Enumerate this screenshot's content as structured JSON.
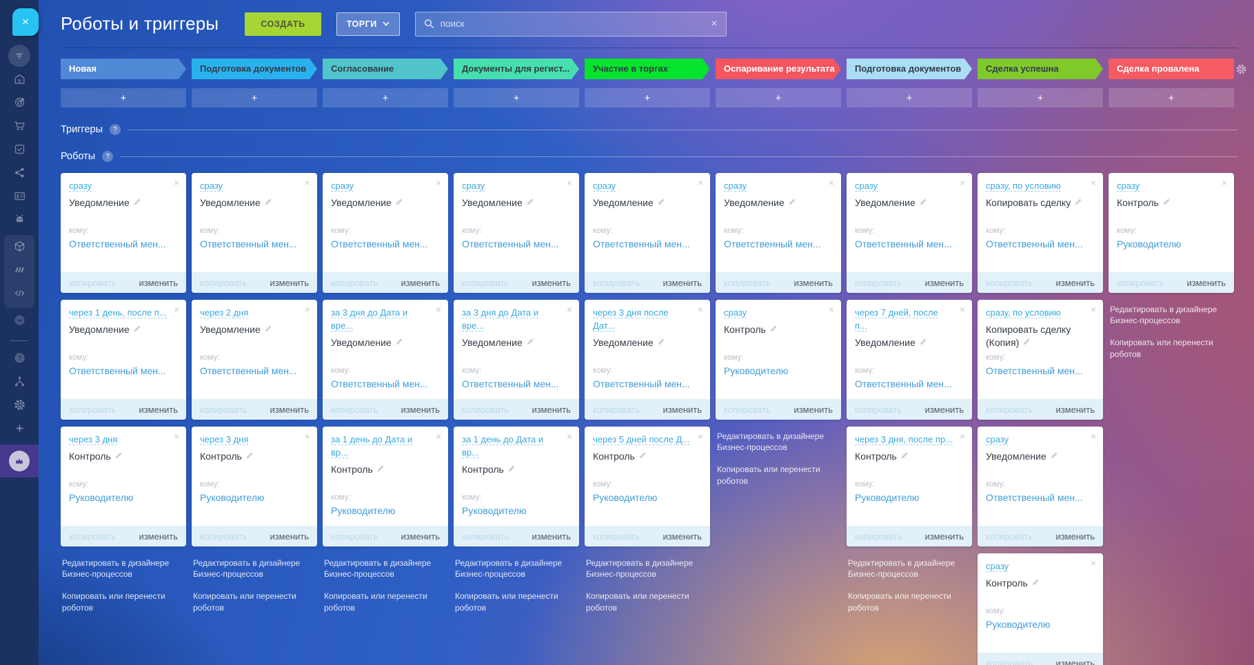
{
  "header": {
    "title": "Роботы и триггеры",
    "create_button": "СОЗДАТЬ",
    "pipeline_button": "ТОРГИ",
    "search": {
      "placeholder": "поиск",
      "clear": "×"
    }
  },
  "sidebar": {
    "close_button": "×",
    "icons": [
      "close-icon",
      "filter-icon",
      "warehouse-icon",
      "target-icon",
      "cart-icon",
      "tasks-icon",
      "share-network-icon",
      "contact-card-icon",
      "robot-icon",
      "cube-icon",
      "marketplace-icon",
      "code-icon",
      "chevron-down-icon",
      "help-icon",
      "sitemap-icon",
      "gear-icon",
      "plus-icon",
      "crown-icon"
    ]
  },
  "sections": {
    "triggers_title": "Триггеры",
    "robots_title": "Роботы"
  },
  "labels": {
    "to": "кому:",
    "copy": "копировать",
    "edit": "изменить",
    "add": "+",
    "close": "×",
    "help": "?",
    "edit_in_designer": "Редактировать в дизайнере Бизнес-процессов",
    "copy_or_move": "Копировать или перенести роботов"
  },
  "colors": {
    "create_button": "#a6d636",
    "sidebar": "#1b3161",
    "sidebar_active": "#46398c",
    "close_bubble": "#27c3f2",
    "card_footer": "#e2f1f9",
    "link_blue": "#3aa9e0"
  },
  "stage_text_dark": "#333b46",
  "columns": [
    {
      "stage": {
        "label": "Новая",
        "color": "#5089d6",
        "text_color": "#ffffff"
      },
      "cards": [
        {
          "when": "сразу",
          "action": "Уведомление",
          "to": "Ответственный мен..."
        },
        {
          "when": "через 1 день, после п...",
          "action": "Уведомление",
          "to": "Ответственный мен..."
        },
        {
          "when": "через 3 дня",
          "action": "Контроль",
          "to": "Руководителю"
        }
      ],
      "show_footer_links": true
    },
    {
      "stage": {
        "label": "Подготовка документов",
        "color": "#29b1ee",
        "text_color": "#333b46"
      },
      "cards": [
        {
          "when": "сразу",
          "action": "Уведомление",
          "to": "Ответственный мен..."
        },
        {
          "when": "через 2 дня",
          "action": "Уведомление",
          "to": "Ответственный мен..."
        },
        {
          "when": "через 3 дня",
          "action": "Контроль",
          "to": "Руководителю"
        }
      ],
      "show_footer_links": true
    },
    {
      "stage": {
        "label": "Согласование",
        "color": "#50c5cb",
        "text_color": "#333b46"
      },
      "cards": [
        {
          "when": "сразу",
          "action": "Уведомление",
          "to": "Ответственный мен..."
        },
        {
          "when": "за 3 дня до Дата и вре...",
          "action": "Уведомление",
          "to": "Ответственный мен..."
        },
        {
          "when": "за 1 день до Дата и вр...",
          "action": "Контроль",
          "to": "Руководителю"
        }
      ],
      "show_footer_links": true
    },
    {
      "stage": {
        "label": "Документы для регист...",
        "color": "#46dfad",
        "text_color": "#333b46"
      },
      "cards": [
        {
          "when": "сразу",
          "action": "Уведомление",
          "to": "Ответственный мен..."
        },
        {
          "when": "за 3 дня до Дата и вре...",
          "action": "Уведомление",
          "to": "Ответственный мен..."
        },
        {
          "when": "за 1 день до Дата и вр...",
          "action": "Контроль",
          "to": "Руководителю"
        }
      ],
      "show_footer_links": true
    },
    {
      "stage": {
        "label": "Участие в торгах",
        "color": "#04e32e",
        "text_color": "#333b46"
      },
      "cards": [
        {
          "when": "сразу",
          "action": "Уведомление",
          "to": "Ответственный мен..."
        },
        {
          "when": "через 3 дня после Дат...",
          "action": "Уведомление",
          "to": "Ответственный мен..."
        },
        {
          "when": "через 5 дней после Д...",
          "action": "Контроль",
          "to": "Руководителю"
        }
      ],
      "show_footer_links": true
    },
    {
      "stage": {
        "label": "Оспаривание результата",
        "color": "#f4555e",
        "text_color": "#ffffff"
      },
      "cards": [
        {
          "when": "сразу",
          "action": "Уведомление",
          "to": "Ответственный мен..."
        },
        {
          "when": "сразу",
          "action": "Контроль",
          "to": "Руководителю"
        }
      ],
      "show_footer_links": true
    },
    {
      "stage": {
        "label": "Подготовка документов",
        "color": "#a9def5",
        "text_color": "#333b46"
      },
      "cards": [
        {
          "when": "сразу",
          "action": "Уведомление",
          "to": "Ответственный мен..."
        },
        {
          "when": "через 7 дней, после п...",
          "action": "Уведомление",
          "to": "Ответственный мен..."
        },
        {
          "when": "через 3 дня, после пр...",
          "action": "Контроль",
          "to": "Руководителю"
        }
      ],
      "show_footer_links": true
    },
    {
      "stage": {
        "label": "Сделка успешна",
        "color": "#7fc92b",
        "text_color": "#333b46"
      },
      "cards": [
        {
          "when": "сразу, по условию",
          "action": "Копировать сделку",
          "to": "Ответственный мен..."
        },
        {
          "when": "сразу, по условию",
          "action": "Копировать сделку (Копия)",
          "to": "Ответственный мен..."
        },
        {
          "when": "сразу",
          "action": "Уведомление",
          "to": "Ответственный мен..."
        },
        {
          "when": "сразу",
          "action": "Контроль",
          "to": "Руководителю"
        }
      ],
      "show_footer_links": false
    },
    {
      "stage": {
        "label": "Сделка провалена",
        "color": "#f45b62",
        "text_color": "#ffffff",
        "last": true
      },
      "cards": [
        {
          "when": "сразу",
          "action": "Контроль",
          "to": "Руководителю"
        }
      ],
      "show_footer_links": true
    }
  ]
}
